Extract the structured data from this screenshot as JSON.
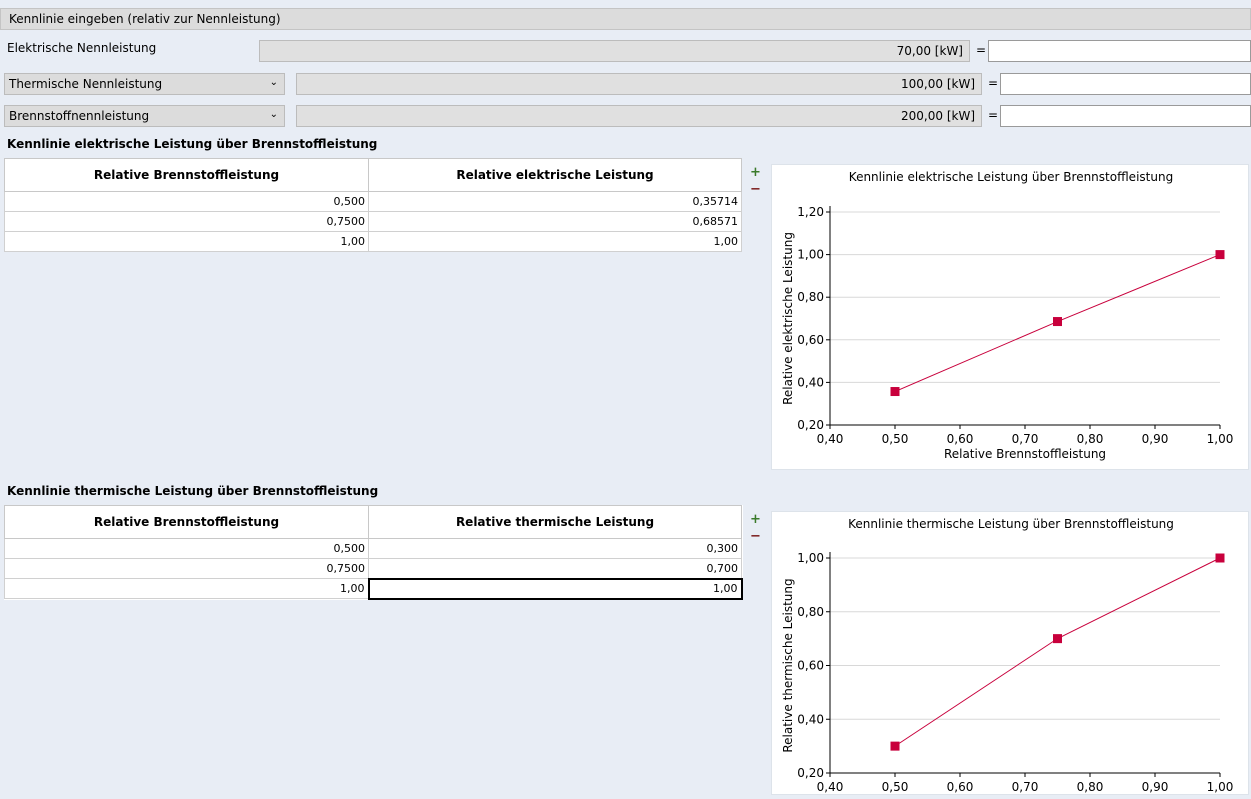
{
  "header": {
    "title": "Kennlinie eingeben (relativ zur Nennleistung)"
  },
  "rows": {
    "elektrisch": {
      "label": "Elektrische Nennleistung",
      "value": "70,00 [kW]",
      "eq": "="
    },
    "thermisch": {
      "select": "Thermische Nennleistung",
      "value": "100,00 [kW]",
      "eq": "="
    },
    "brennstoff": {
      "select": "Brennstoffnennleistung",
      "value": "200,00 [kW]",
      "eq": "="
    }
  },
  "table1": {
    "title": "Kennlinie elektrische Leistung über Brennstoffleistung",
    "headers": [
      "Relative Brennstoffleistung",
      "Relative elektrische Leistung"
    ],
    "rows": [
      [
        "0,500",
        "0,35714"
      ],
      [
        "0,7500",
        "0,68571"
      ],
      [
        "1,00",
        "1,00"
      ]
    ]
  },
  "table2": {
    "title": "Kennlinie thermische Leistung über Brennstoffleistung",
    "headers": [
      "Relative Brennstoffleistung",
      "Relative thermische Leistung"
    ],
    "rows": [
      [
        "0,500",
        "0,300"
      ],
      [
        "0,7500",
        "0,700"
      ],
      [
        "1,00",
        "1,00"
      ]
    ]
  },
  "buttons": {
    "plus": "+",
    "minus": "−"
  },
  "colors": {
    "series": "#c8003c",
    "background": "#e8edf5"
  },
  "chart_data": [
    {
      "type": "line",
      "title": "Kennlinie elektrische Leistung über Brennstoffleistung",
      "xlabel": "Relative Brennstoffleistung",
      "ylabel": "Relative elektrische Leistung",
      "x": [
        0.5,
        0.75,
        1.0
      ],
      "y": [
        0.35714,
        0.68571,
        1.0
      ],
      "xlim": [
        0.4,
        1.0
      ],
      "ylim": [
        0.2,
        1.2
      ],
      "xticks": [
        "0,40",
        "0,50",
        "0,60",
        "0,70",
        "0,80",
        "0,90",
        "1,00"
      ],
      "yticks": [
        "0,20",
        "0,40",
        "0,60",
        "0,80",
        "1,00",
        "1,20"
      ],
      "grid": "horizontal"
    },
    {
      "type": "line",
      "title": "Kennlinie thermische Leistung über Brennstoffleistung",
      "xlabel": "",
      "ylabel": "Relative thermische Leistung",
      "x": [
        0.5,
        0.75,
        1.0
      ],
      "y": [
        0.3,
        0.7,
        1.0
      ],
      "xlim": [
        0.4,
        1.0
      ],
      "ylim": [
        0.2,
        1.0
      ],
      "xticks": [
        "0,40",
        "0,50",
        "0,60",
        "0,70",
        "0,80",
        "0,90",
        "1,00"
      ],
      "yticks": [
        "0,20",
        "0,40",
        "0,60",
        "0,80",
        "1,00"
      ],
      "grid": "horizontal"
    }
  ]
}
